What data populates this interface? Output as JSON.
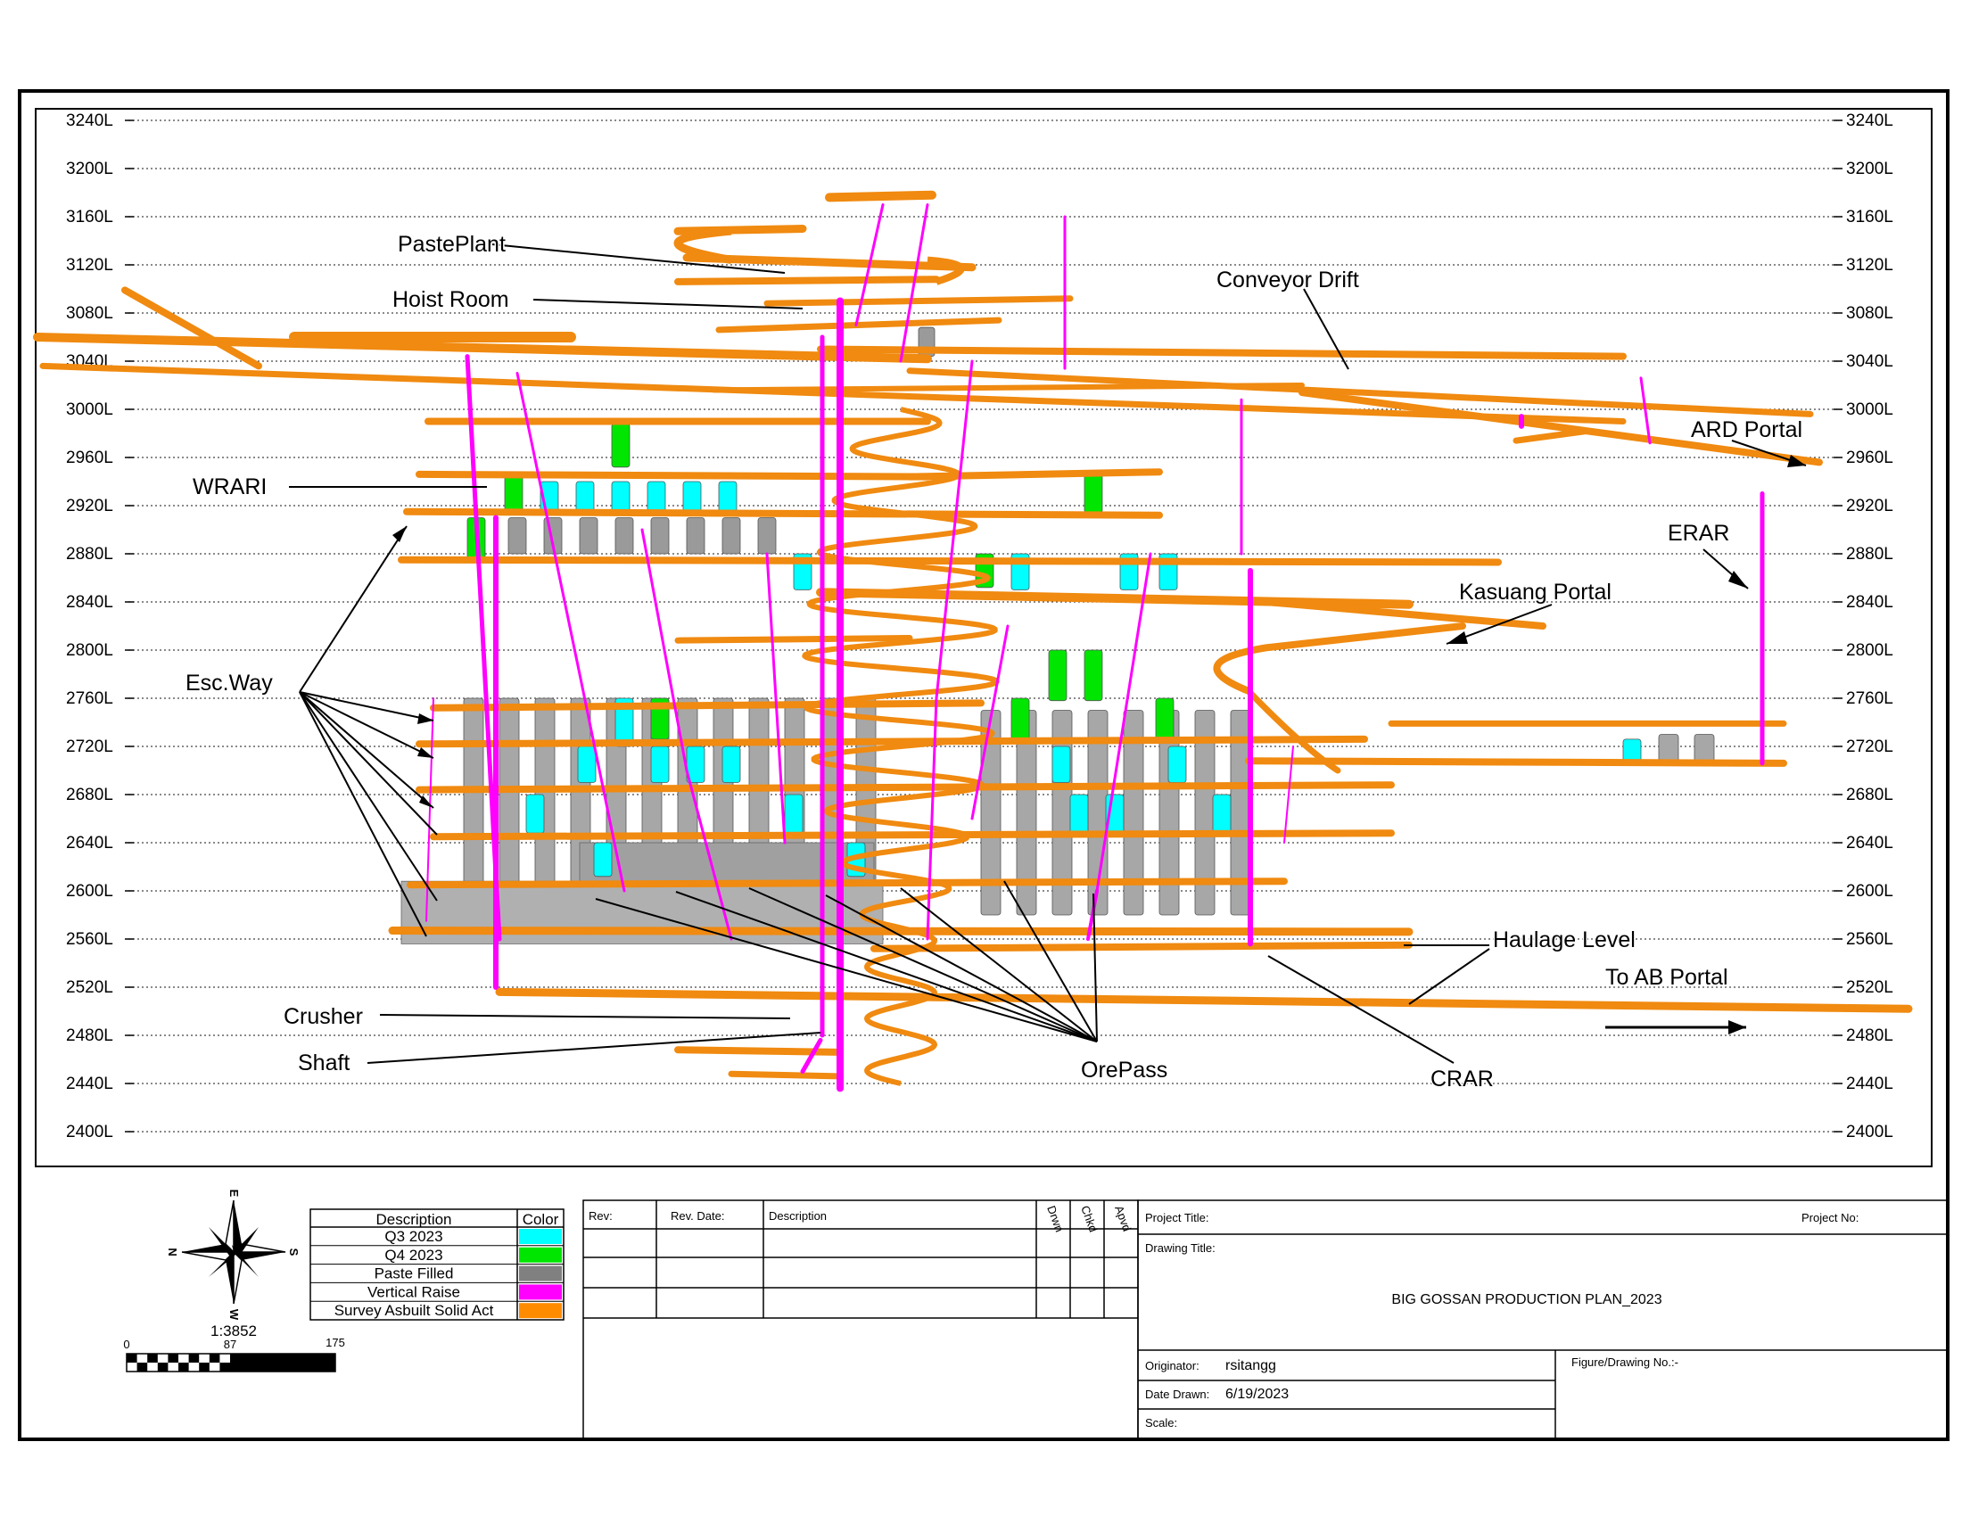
{
  "levels": [
    "3240L",
    "3200L",
    "3160L",
    "3120L",
    "3080L",
    "3040L",
    "3000L",
    "2960L",
    "2920L",
    "2880L",
    "2840L",
    "2800L",
    "2760L",
    "2720L",
    "2680L",
    "2640L",
    "2600L",
    "2560L",
    "2520L",
    "2480L",
    "2440L",
    "2400L"
  ],
  "callouts": {
    "paste_plant": "PastePlant",
    "hoist_room": "Hoist Room",
    "conveyor_drift": "Conveyor Drift",
    "ard_portal": "ARD Portal",
    "wrari": "WRARI",
    "erar": "ERAR",
    "kasuang_portal": "Kasuang Portal",
    "esc_way": "Esc.Way",
    "haulage_level": "Haulage Level",
    "to_ab_portal": "To AB Portal",
    "crusher": "Crusher",
    "shaft": "Shaft",
    "ore_pass": "OrePass",
    "crar": "CRAR"
  },
  "compass": {
    "n": "N",
    "s": "S",
    "e": "E",
    "w": "W"
  },
  "scale": {
    "ratio": "1:3852",
    "ticks": [
      "0",
      "87",
      "175"
    ]
  },
  "legend": {
    "header_description": "Description",
    "header_color": "Color",
    "items": [
      {
        "label": "Q3 2023",
        "color": "#00ffff"
      },
      {
        "label": "Q4 2023",
        "color": "#00e600"
      },
      {
        "label": "Paste Filled",
        "color": "#808080"
      },
      {
        "label": "Vertical Raise",
        "color": "#ff00ff"
      },
      {
        "label": "Survey Asbuilt Solid Act",
        "color": "#ff8c00"
      }
    ]
  },
  "revision_table": {
    "headers": [
      "Rev:",
      "Rev. Date:",
      "Description",
      "Drwn",
      "Chkd",
      "Apvd"
    ]
  },
  "title_block": {
    "project_title_label": "Project Title:",
    "project_no_label": "Project No:",
    "drawing_title_label": "Drawing Title:",
    "drawing_title": "BIG GOSSAN PRODUCTION PLAN_2023",
    "originator_label": "Originator:",
    "originator": "rsitangg",
    "date_drawn_label": "Date Drawn:",
    "date_drawn": "6/19/2023",
    "scale_label": "Scale:",
    "figure_no_label": "Figure/Drawing No.:-"
  },
  "colors": {
    "drift": "#f08a10",
    "raise": "#ff00ff",
    "q3": "#00ffff",
    "q4": "#00e600",
    "paste": "#9a9a9a"
  }
}
